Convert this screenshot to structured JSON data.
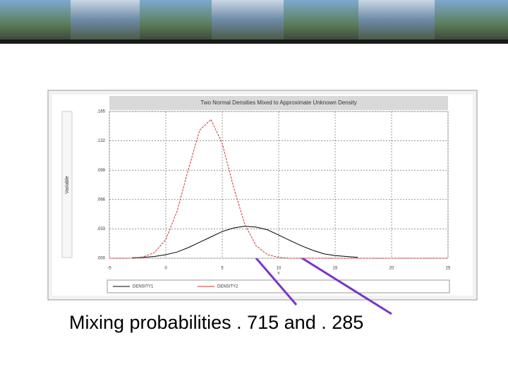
{
  "chart_data": {
    "type": "line",
    "title": "Two Normal Densities Mixed to Approximate Unknown Density",
    "ylabel": "Variable",
    "xlabel": "Y",
    "x": [
      -5,
      -4,
      -3,
      -2,
      -1,
      0,
      1,
      2,
      3,
      4,
      5,
      6,
      7,
      8,
      9,
      10,
      11,
      12,
      13,
      14,
      15,
      16,
      17,
      18,
      19,
      20,
      21,
      22,
      23,
      24,
      25
    ],
    "series": [
      {
        "name": "DENSITY1",
        "color": "#000000",
        "values": [
          null,
          null,
          0.0005,
          0.001,
          0.002,
          0.004,
          0.007,
          0.012,
          0.018,
          0.024,
          0.03,
          0.034,
          0.036,
          0.035,
          0.032,
          0.026,
          0.02,
          0.014,
          0.009,
          0.005,
          0.003,
          0.002,
          0.001,
          null,
          null,
          null,
          null,
          null,
          null,
          null,
          null
        ]
      },
      {
        "name": "DENSITY2",
        "color": "#cc3333",
        "values": [
          0,
          0,
          0,
          0.0015,
          0.0065,
          0.021,
          0.053,
          0.1,
          0.144,
          0.156,
          0.129,
          0.08,
          0.038,
          0.014,
          0.004,
          0.001,
          0,
          0,
          0,
          0,
          0,
          0,
          0,
          0,
          0,
          0,
          0,
          0,
          0,
          0,
          0
        ]
      }
    ],
    "xlim": [
      -5,
      25
    ],
    "xticks": [
      -5,
      0,
      5,
      10,
      15,
      20,
      25
    ],
    "ylim": [
      0,
      0.165
    ],
    "yticks": [
      {
        "value": 0,
        "label": ".000"
      },
      {
        "value": 0.033,
        "label": ".033"
      },
      {
        "value": 0.066,
        "label": ".066"
      },
      {
        "value": 0.099,
        "label": ".099"
      },
      {
        "value": 0.132,
        "label": ".132"
      },
      {
        "value": 0.165,
        "label": ".165"
      }
    ],
    "grid": true
  },
  "slide": {
    "caption": "Mixing probabilities . 715 and . 285"
  }
}
